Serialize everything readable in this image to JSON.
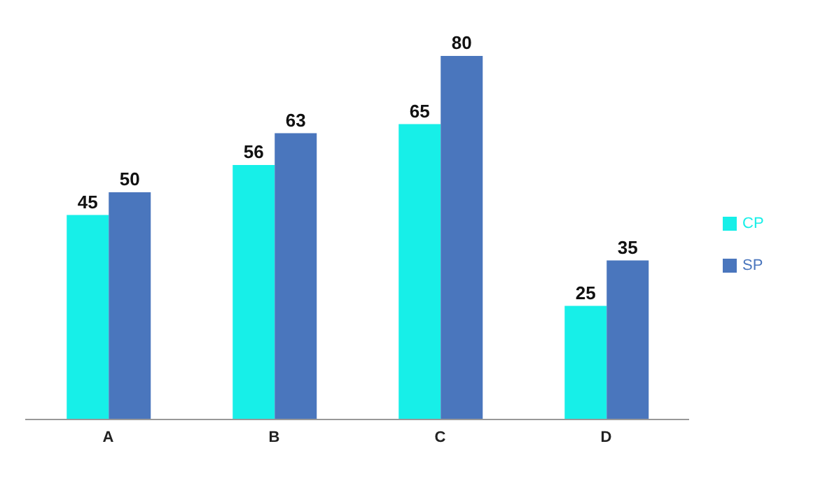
{
  "chart_data": {
    "type": "bar",
    "categories": [
      "A",
      "B",
      "C",
      "D"
    ],
    "series": [
      {
        "name": "CP",
        "color": "#17efe8",
        "values": [
          45,
          56,
          65,
          25
        ]
      },
      {
        "name": "SP",
        "color": "#4a76bd",
        "values": [
          50,
          63,
          80,
          35
        ]
      }
    ],
    "data_labels": true,
    "legend": "right",
    "grid": false
  }
}
